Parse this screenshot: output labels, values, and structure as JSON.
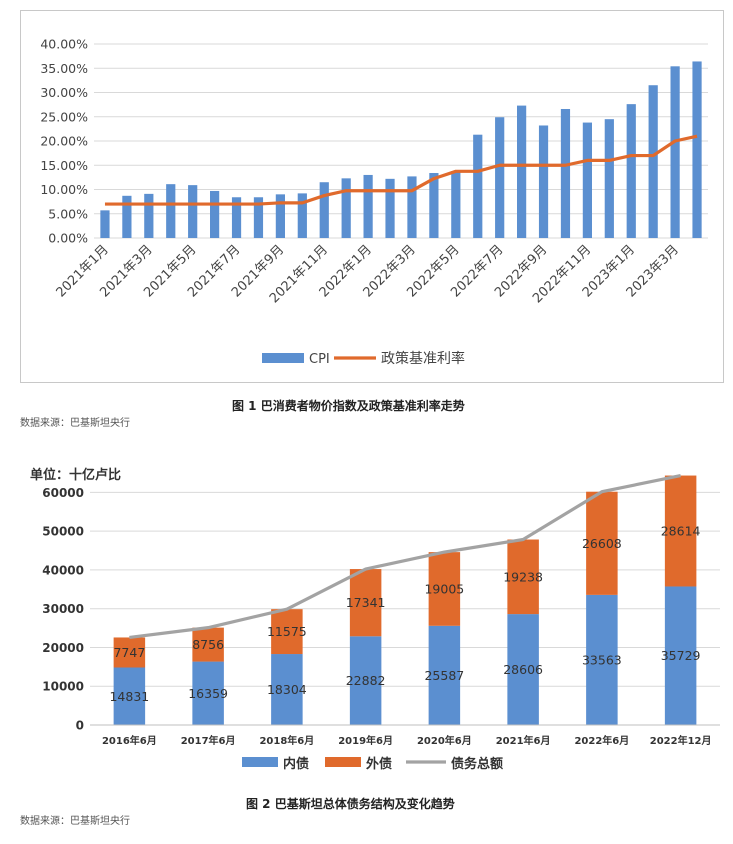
{
  "figure1": {
    "caption": "图 1   巴消费者物价指数及政策基准利率走势",
    "source": "数据来源：巴基斯坦央行"
  },
  "figure2": {
    "unit_label": "单位：十亿卢比",
    "caption": "图 2   巴基斯坦总体债务结构及变化趋势",
    "source": "数据来源：巴基斯坦央行"
  },
  "colors": {
    "blue": "#5b8fd0",
    "orange": "#e06a2c",
    "gray": "#a3a3a3",
    "grid": "#d9d9d9"
  },
  "chart_data": [
    {
      "type": "bar",
      "categories": [
        "2021年1月",
        "2021年2月",
        "2021年3月",
        "2021年4月",
        "2021年5月",
        "2021年6月",
        "2021年7月",
        "2021年8月",
        "2021年9月",
        "2021年10月",
        "2021年11月",
        "2021年12月",
        "2022年1月",
        "2022年2月",
        "2022年3月",
        "2022年4月",
        "2022年5月",
        "2022年6月",
        "2022年7月",
        "2022年8月",
        "2022年9月",
        "2022年10月",
        "2022年11月",
        "2022年12月",
        "2023年1月",
        "2023年2月",
        "2023年3月",
        "2023年4月"
      ],
      "x_tick_labels": [
        "2021年1月",
        "2021年3月",
        "2021年5月",
        "2021年7月",
        "2021年9月",
        "2021年11月",
        "2022年1月",
        "2022年3月",
        "2022年5月",
        "2022年7月",
        "2022年9月",
        "2022年11月",
        "2023年1月",
        "2023年3月"
      ],
      "series": [
        {
          "name": "CPI",
          "kind": "bar",
          "values": [
            5.7,
            8.7,
            9.1,
            11.1,
            10.9,
            9.7,
            8.4,
            8.4,
            9.0,
            9.2,
            11.5,
            12.3,
            13.0,
            12.2,
            12.7,
            13.4,
            13.8,
            21.3,
            24.9,
            27.3,
            23.2,
            26.6,
            23.8,
            24.5,
            27.6,
            31.5,
            35.4,
            36.4
          ]
        },
        {
          "name": "政策基准利率",
          "kind": "line",
          "values": [
            7,
            7,
            7,
            7,
            7,
            7,
            7,
            7,
            7.25,
            7.25,
            8.75,
            9.75,
            9.75,
            9.75,
            9.75,
            12.25,
            13.75,
            13.75,
            15,
            15,
            15,
            15,
            16,
            16,
            17,
            17,
            20,
            21
          ]
        }
      ],
      "y_ticks": [
        "0.00%",
        "5.00%",
        "10.00%",
        "15.00%",
        "20.00%",
        "25.00%",
        "30.00%",
        "35.00%",
        "40.00%"
      ],
      "ylim": [
        0,
        40
      ],
      "legend_position": "bottom",
      "grid": true
    },
    {
      "type": "bar",
      "categories": [
        "2016年6月",
        "2017年6月",
        "2018年6月",
        "2019年6月",
        "2020年6月",
        "2021年6月",
        "2022年6月",
        "2022年12月"
      ],
      "series": [
        {
          "name": "内债",
          "kind": "stacked-bar",
          "values": [
            14831,
            16359,
            18304,
            22882,
            25587,
            28606,
            33563,
            35729
          ]
        },
        {
          "name": "外债",
          "kind": "stacked-bar",
          "values": [
            7747,
            8756,
            11575,
            17341,
            19005,
            19238,
            26608,
            28614
          ]
        },
        {
          "name": "债务总额",
          "kind": "line",
          "values": [
            22578,
            25115,
            29879,
            40223,
            44592,
            47844,
            60171,
            64343
          ]
        }
      ],
      "y_ticks": [
        "0",
        "10000",
        "20000",
        "30000",
        "40000",
        "50000",
        "60000"
      ],
      "ylim": [
        0,
        65000
      ],
      "legend_position": "bottom",
      "grid": true
    }
  ]
}
